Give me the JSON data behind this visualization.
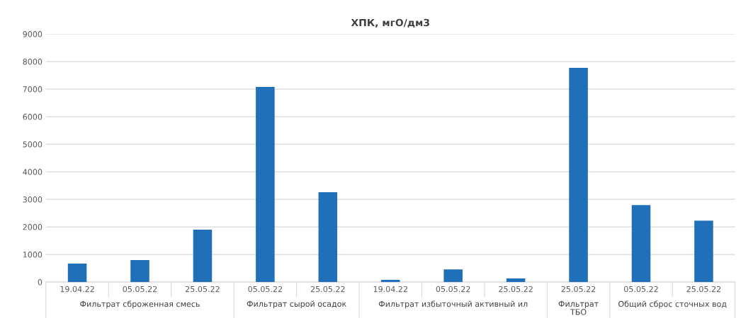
{
  "chart_data": {
    "type": "bar",
    "title": "ХПК, мгО/дм3",
    "categories": [
      "19.04.22",
      "05.05.22",
      "25.05.22",
      "05.05.22",
      "25.05.22",
      "19.04.22",
      "05.05.22",
      "25.05.22",
      "25.05.22",
      "05.05.22",
      "25.05.22"
    ],
    "values": [
      670,
      800,
      1900,
      7080,
      3260,
      80,
      460,
      130,
      7770,
      2790,
      2230
    ],
    "color": "#1f70b8",
    "ylim": [
      0,
      9000
    ],
    "yticks": [
      0,
      1000,
      2000,
      3000,
      4000,
      5000,
      6000,
      7000,
      8000,
      9000
    ],
    "grid": "y",
    "annotations": [
      "Фильтрат сброженная смесь",
      "Фильтрат сырой осадок",
      "Фильтрат избыточный активный ил",
      "Фильтрат ТБО",
      "Общий сброс сточных вод"
    ]
  }
}
